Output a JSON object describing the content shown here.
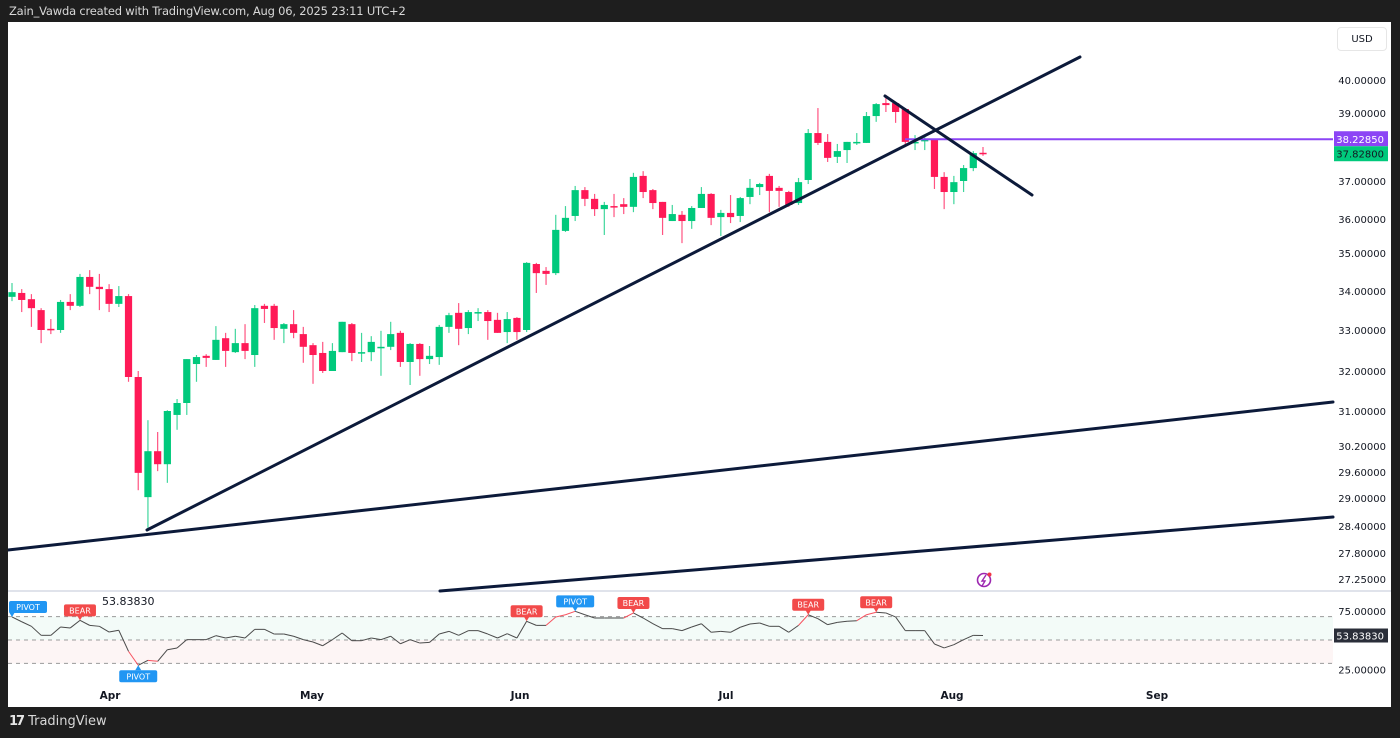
{
  "header": {
    "text": "Zain_Vawda created with TradingView.com, Aug 06, 2025 23:11 UTC+2"
  },
  "price_axis": {
    "currency": "USD",
    "ticks": [
      "40.00000",
      "39.00000",
      "37.00000",
      "36.00000",
      "35.00000",
      "34.00000",
      "33.00000",
      "32.00000",
      "31.00000",
      "30.20000",
      "29.60000",
      "29.00000",
      "28.40000",
      "27.80000",
      "27.25000"
    ],
    "horizontal_line_label": "38.22850",
    "last_price_label": "37.82800"
  },
  "rsi_pane": {
    "legend_value": "53.83830",
    "ticks": [
      "75.00000",
      "25.00000"
    ],
    "last_value_label": "53.83830",
    "markers": [
      {
        "label": "PIVOT",
        "type": "pivot",
        "index": 0,
        "pos": "above"
      },
      {
        "label": "BEAR",
        "type": "bear",
        "index": 7,
        "pos": "above"
      },
      {
        "label": "PIVOT",
        "type": "pivot",
        "index": 13,
        "pos": "below"
      },
      {
        "label": "BEAR",
        "type": "bear",
        "index": 53,
        "pos": "above"
      },
      {
        "label": "PIVOT",
        "type": "pivot",
        "index": 58,
        "pos": "above"
      },
      {
        "label": "BEAR",
        "type": "bear",
        "index": 64,
        "pos": "above"
      },
      {
        "label": "BEAR",
        "type": "bear",
        "index": 82,
        "pos": "above"
      },
      {
        "label": "BEAR",
        "type": "bear",
        "index": 89,
        "pos": "above"
      }
    ]
  },
  "time_axis": {
    "labels": [
      "Apr",
      "May",
      "Jun",
      "Jul",
      "Aug",
      "Sep"
    ]
  },
  "footer": {
    "brand": "TradingView"
  },
  "colors": {
    "up": "#00c97c",
    "down": "#ff1a57",
    "trendline": "#0c1a3a",
    "horizontal_line": "#8c45f5",
    "rsi_line": "#4a4a4a",
    "bear_tag": "#f24a4a",
    "pivot_tag": "#2196f3",
    "axis_label_bg": "#2a2e39"
  },
  "chart_data": {
    "type": "candlestick",
    "y_scale": "log",
    "ylim": [
      27.0,
      40.6
    ],
    "candles_ohlc": [
      [
        33.85,
        34.21,
        33.74,
        33.97
      ],
      [
        33.95,
        34.05,
        33.46,
        33.77
      ],
      [
        33.79,
        33.92,
        33.08,
        33.56
      ],
      [
        33.51,
        33.56,
        32.68,
        33.0
      ],
      [
        33.03,
        33.28,
        32.9,
        33.0
      ],
      [
        33.0,
        33.77,
        32.93,
        33.72
      ],
      [
        33.72,
        33.92,
        33.51,
        33.62
      ],
      [
        33.62,
        34.45,
        33.59,
        34.37
      ],
      [
        34.37,
        34.55,
        33.92,
        34.11
      ],
      [
        34.11,
        34.45,
        33.51,
        34.05
      ],
      [
        34.05,
        34.18,
        33.46,
        33.67
      ],
      [
        33.67,
        34.13,
        33.59,
        33.87
      ],
      [
        33.87,
        33.92,
        31.73,
        31.85
      ],
      [
        31.85,
        32.0,
        29.18,
        29.58
      ],
      [
        29.02,
        30.79,
        28.36,
        30.08
      ],
      [
        30.08,
        30.52,
        29.62,
        29.78
      ],
      [
        29.78,
        31.02,
        29.35,
        31.0
      ],
      [
        30.91,
        31.3,
        30.57,
        31.2
      ],
      [
        31.2,
        32.29,
        30.91,
        32.29
      ],
      [
        32.17,
        32.39,
        31.73,
        32.34
      ],
      [
        32.37,
        32.41,
        32.1,
        32.32
      ],
      [
        32.27,
        33.1,
        32.27,
        32.76
      ],
      [
        32.8,
        32.93,
        32.1,
        32.49
      ],
      [
        32.46,
        33.03,
        32.44,
        32.68
      ],
      [
        32.68,
        33.15,
        32.29,
        32.49
      ],
      [
        32.39,
        33.64,
        32.1,
        33.56
      ],
      [
        33.62,
        33.67,
        33.18,
        33.54
      ],
      [
        33.62,
        33.67,
        32.76,
        33.05
      ],
      [
        33.03,
        33.18,
        32.68,
        33.15
      ],
      [
        33.15,
        33.51,
        32.8,
        32.93
      ],
      [
        32.9,
        33.08,
        32.2,
        32.59
      ],
      [
        32.63,
        32.68,
        31.68,
        32.39
      ],
      [
        32.44,
        32.71,
        31.95,
        32.0
      ],
      [
        32.0,
        32.68,
        32.0,
        32.49
      ],
      [
        32.46,
        33.21,
        32.46,
        33.21
      ],
      [
        33.15,
        33.18,
        32.24,
        32.44
      ],
      [
        32.44,
        32.93,
        32.22,
        32.46
      ],
      [
        32.46,
        32.85,
        32.24,
        32.71
      ],
      [
        32.56,
        32.98,
        31.88,
        32.59
      ],
      [
        32.59,
        33.21,
        32.51,
        32.9
      ],
      [
        32.93,
        32.98,
        32.1,
        32.22
      ],
      [
        32.22,
        32.68,
        31.65,
        32.66
      ],
      [
        32.66,
        32.68,
        31.88,
        32.29
      ],
      [
        32.29,
        32.61,
        32.17,
        32.37
      ],
      [
        32.34,
        33.13,
        32.15,
        33.08
      ],
      [
        33.08,
        33.44,
        32.93,
        33.38
      ],
      [
        33.44,
        33.69,
        32.63,
        33.03
      ],
      [
        33.05,
        33.51,
        32.9,
        33.46
      ],
      [
        33.44,
        33.56,
        33.23,
        33.46
      ],
      [
        33.46,
        33.51,
        32.76,
        33.23
      ],
      [
        33.26,
        33.44,
        32.93,
        32.93
      ],
      [
        32.95,
        33.46,
        32.68,
        33.28
      ],
      [
        33.31,
        33.33,
        32.76,
        32.95
      ],
      [
        33.0,
        34.76,
        32.95,
        34.74
      ],
      [
        34.71,
        34.74,
        33.95,
        34.47
      ],
      [
        34.53,
        34.63,
        34.16,
        34.45
      ],
      [
        34.47,
        36.11,
        34.42,
        35.68
      ],
      [
        35.65,
        36.34,
        35.62,
        36.03
      ],
      [
        36.08,
        36.87,
        35.94,
        36.76
      ],
      [
        36.76,
        36.84,
        36.34,
        36.53
      ],
      [
        36.53,
        36.66,
        36.08,
        36.26
      ],
      [
        36.26,
        36.45,
        35.53,
        36.37
      ],
      [
        36.34,
        36.66,
        36.05,
        36.32
      ],
      [
        36.39,
        36.55,
        36.13,
        36.32
      ],
      [
        36.32,
        37.24,
        36.18,
        37.12
      ],
      [
        37.15,
        37.29,
        36.55,
        36.71
      ],
      [
        36.76,
        36.79,
        36.26,
        36.42
      ],
      [
        36.45,
        36.45,
        35.53,
        36.03
      ],
      [
        35.94,
        36.37,
        35.94,
        36.13
      ],
      [
        36.11,
        36.21,
        35.29,
        35.94
      ],
      [
        35.94,
        36.34,
        35.71,
        36.29
      ],
      [
        36.29,
        36.84,
        36.29,
        36.66
      ],
      [
        36.66,
        36.68,
        35.82,
        36.03
      ],
      [
        36.05,
        36.24,
        35.5,
        36.16
      ],
      [
        36.16,
        36.63,
        35.88,
        36.05
      ],
      [
        36.08,
        36.58,
        35.91,
        36.55
      ],
      [
        36.58,
        37.06,
        36.39,
        36.82
      ],
      [
        36.84,
        36.95,
        36.63,
        36.92
      ],
      [
        37.15,
        37.21,
        36.18,
        36.74
      ],
      [
        36.82,
        36.87,
        36.32,
        36.74
      ],
      [
        36.71,
        36.74,
        36.32,
        36.37
      ],
      [
        36.42,
        37.09,
        36.37,
        36.97
      ],
      [
        37.03,
        38.53,
        36.92,
        38.41
      ],
      [
        38.41,
        39.15,
        38.06,
        38.12
      ],
      [
        38.15,
        38.38,
        37.56,
        37.68
      ],
      [
        37.71,
        38.09,
        37.53,
        37.88
      ],
      [
        37.91,
        38.15,
        37.53,
        38.15
      ],
      [
        38.12,
        38.41,
        38.06,
        38.15
      ],
      [
        38.12,
        39.03,
        38.12,
        38.91
      ],
      [
        38.91,
        39.3,
        38.74,
        39.27
      ],
      [
        39.3,
        39.55,
        39.03,
        39.24
      ],
      [
        39.3,
        39.33,
        38.71,
        39.03
      ],
      [
        39.12,
        39.15,
        38.0,
        38.15
      ],
      [
        38.12,
        38.35,
        37.91,
        38.15
      ],
      [
        38.18,
        38.29,
        37.91,
        38.21
      ],
      [
        38.24,
        38.24,
        36.79,
        37.12
      ],
      [
        37.12,
        37.26,
        36.26,
        36.71
      ],
      [
        36.71,
        37.15,
        36.39,
        36.97
      ],
      [
        37.0,
        37.47,
        36.71,
        37.38
      ],
      [
        37.38,
        37.88,
        37.29,
        37.82
      ],
      [
        37.83,
        38.0,
        37.74,
        37.828
      ]
    ],
    "horizontal_level": 38.2285,
    "rsi": {
      "ylim": [
        20,
        80
      ],
      "levels": [
        70,
        50,
        30
      ],
      "values": [
        69.7,
        65.6,
        61.7,
        54.0,
        54.0,
        61.1,
        60.3,
        66.8,
        62.5,
        61.7,
        56.8,
        58.3,
        40.3,
        28.4,
        32.6,
        31.8,
        41.7,
        43.2,
        50.3,
        50.3,
        50.3,
        53.7,
        51.7,
        53.2,
        51.7,
        59.1,
        59.1,
        55.1,
        55.1,
        53.2,
        50.3,
        48.3,
        45.1,
        50.3,
        56.0,
        49.4,
        49.4,
        51.7,
        50.3,
        53.2,
        46.8,
        50.3,
        47.4,
        48.0,
        55.1,
        57.4,
        54.0,
        58.0,
        58.0,
        55.1,
        51.7,
        55.4,
        51.7,
        66.0,
        62.5,
        62.5,
        69.7,
        71.6,
        74.5,
        71.6,
        68.8,
        68.8,
        68.8,
        68.8,
        73.1,
        68.8,
        63.9,
        59.7,
        59.7,
        58.0,
        61.1,
        63.9,
        56.6,
        57.4,
        56.6,
        60.9,
        63.7,
        64.5,
        61.7,
        61.7,
        56.6,
        62.5,
        71.6,
        68.2,
        63.1,
        65.1,
        66.0,
        66.5,
        71.6,
        73.7,
        73.1,
        69.7,
        58.0,
        58.0,
        58.0,
        46.6,
        43.2,
        46.0,
        50.3,
        54.0,
        53.84
      ]
    }
  }
}
